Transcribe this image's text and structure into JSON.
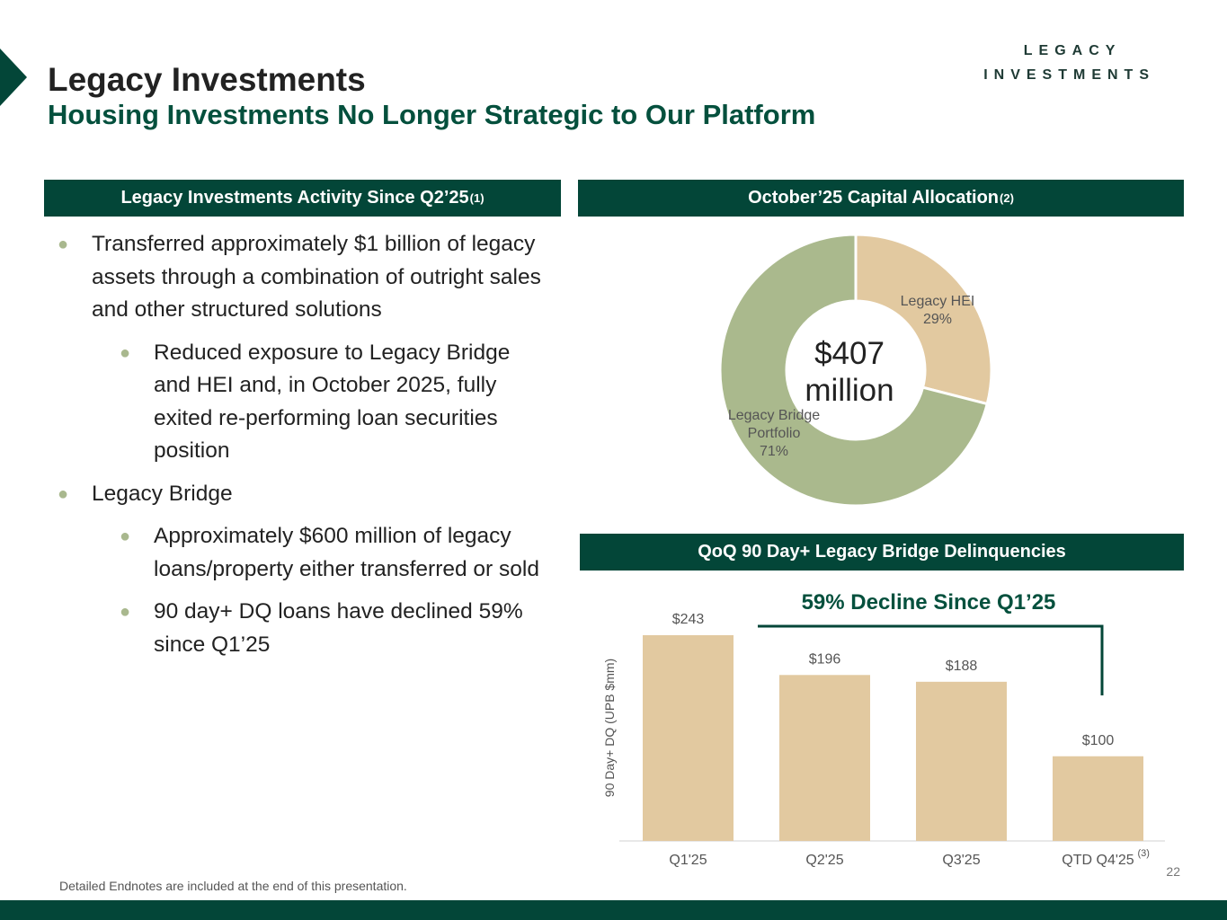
{
  "header": {
    "title": "Legacy Investments",
    "subtitle": "Housing Investments No Longer Strategic to Our Platform",
    "logo_line1": "LEGACY",
    "logo_line2": "INVESTMENTS"
  },
  "left_panel": {
    "heading": "Legacy Investments Activity Since Q2’25",
    "heading_note": "(1)",
    "bullets": [
      "Transferred approximately $1 billion of legacy assets through a combination of outright sales and other structured solutions",
      "Reduced exposure to Legacy Bridge and HEI and, in October 2025, fully exited re-performing loan securities position",
      "Legacy Bridge",
      "Approximately $600 million of legacy loans/property either transferred or sold",
      "90 day+ DQ loans have declined 59% since Q1’25"
    ]
  },
  "chart_data": [
    {
      "type": "pie",
      "donut": true,
      "heading": "October’25 Capital Allocation",
      "heading_note": "(2)",
      "center_value": "$407",
      "center_unit": "million",
      "slices": [
        {
          "label": "Legacy HEI",
          "pct_label": "29%",
          "value": 29,
          "color": "#e2c9a0"
        },
        {
          "label_lines": [
            "Legacy Bridge",
            "Portfolio"
          ],
          "pct_label": "71%",
          "value": 71,
          "color": "#aab98d"
        }
      ]
    },
    {
      "type": "bar",
      "heading": "QoQ 90 Day+ Legacy Bridge Delinquencies",
      "annotation": "59% Decline Since Q1’25",
      "ylabel": "90 Day+ DQ (UPB $mm)",
      "categories": [
        "Q1'25",
        "Q2'25",
        "Q3'25",
        "QTD Q4'25"
      ],
      "category_note": "(3)",
      "values": [
        243,
        196,
        188,
        100
      ],
      "value_labels": [
        "$243",
        "$196",
        "$188",
        "$100"
      ],
      "ylim": [
        0,
        243
      ],
      "bar_color": "#e2c9a0"
    }
  ],
  "footer": {
    "note": "Detailed Endnotes are included at the end of this presentation.",
    "page": "22"
  },
  "colors": {
    "brand": "#034638",
    "accent_green": "#04503d",
    "tan": "#e2c9a0",
    "sage": "#aab98d"
  }
}
